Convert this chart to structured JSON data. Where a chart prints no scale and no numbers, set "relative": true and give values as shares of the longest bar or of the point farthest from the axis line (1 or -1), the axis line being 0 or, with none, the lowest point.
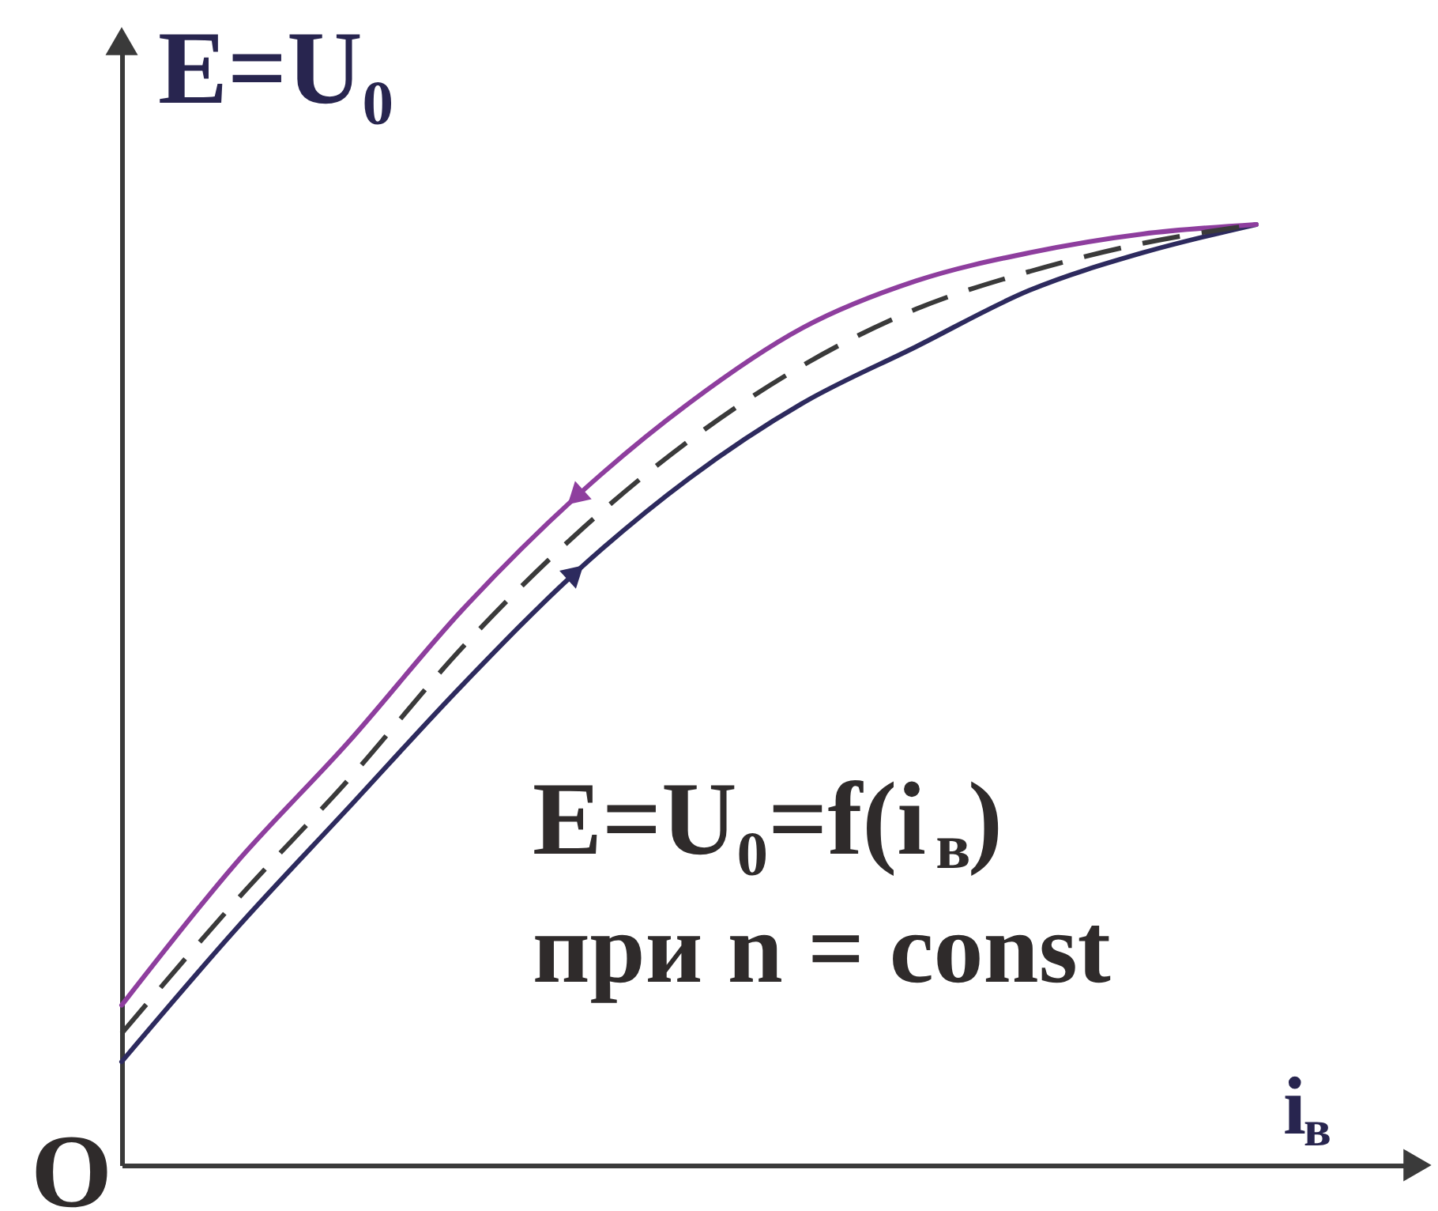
{
  "chart_data": {
    "type": "line",
    "relative": true,
    "ylabel": "E=U₀",
    "xlabel": "i$_{в}$",
    "annotations": [
      "E=U₀=f(i$_{в}$)",
      "при n = const",
      "O"
    ],
    "categories": [
      null,
      null,
      null,
      null,
      null,
      null,
      null,
      null,
      null,
      null,
      null
    ],
    "series": [
      {
        "color": "#2d2a5e",
        "values": [
          0.11,
          0.25,
          0.38,
          0.51,
          0.63,
          0.73,
          0.81,
          0.87,
          0.93,
          0.97,
          1
        ]
      },
      {
        "color": "#8e3e9e",
        "values": [
          0.17,
          0.32,
          0.45,
          0.59,
          0.71,
          0.81,
          0.89,
          0.94,
          0.97,
          0.99,
          1
        ]
      },
      {
        "color": "#3a3a3a",
        "line_style": "dashed",
        "values": [
          0.14,
          0.28,
          0.41,
          0.55,
          0.67,
          0.77,
          0.85,
          0.91,
          0.95,
          0.98,
          1
        ]
      }
    ]
  }
}
